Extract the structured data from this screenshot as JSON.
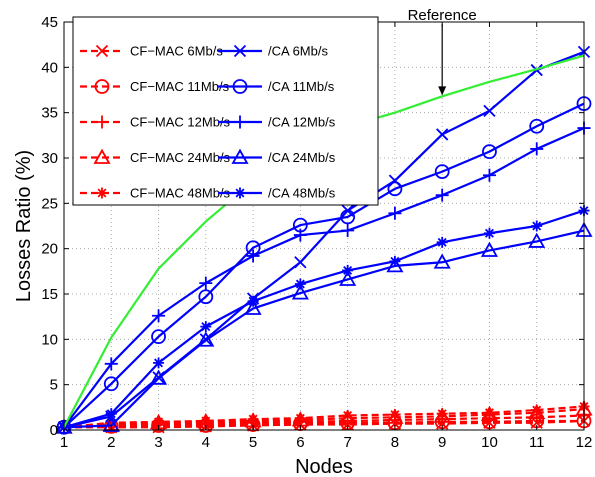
{
  "chart_data": {
    "type": "line",
    "title": "",
    "xlabel": "Nodes",
    "ylabel": "Losses Ratio (%)",
    "xlim": [
      1,
      12
    ],
    "ylim": [
      0,
      45
    ],
    "x_ticks": [
      1,
      2,
      3,
      4,
      5,
      6,
      7,
      8,
      9,
      10,
      11,
      12
    ],
    "y_ticks": [
      0,
      5,
      10,
      15,
      20,
      25,
      30,
      35,
      40,
      45
    ],
    "grid": true,
    "legend_placement": "top-left",
    "x": [
      1,
      2,
      3,
      4,
      5,
      6,
      7,
      8,
      9,
      10,
      11,
      12
    ],
    "series": [
      {
        "name": "CF−MAC 6Mb/s",
        "color": "#ff0000",
        "dash": true,
        "marker": "x",
        "values": [
          0.3,
          0.3,
          0.3,
          0.4,
          0.5,
          0.6,
          0.6,
          0.7,
          0.7,
          0.8,
          0.8,
          1.0
        ]
      },
      {
        "name": "CF−MAC 11Mb/s",
        "color": "#ff0000",
        "dash": true,
        "marker": "circle",
        "values": [
          0.3,
          0.4,
          0.5,
          0.5,
          0.6,
          0.7,
          0.8,
          0.8,
          0.9,
          0.9,
          1.0,
          1.0
        ]
      },
      {
        "name": "CF−MAC 12Mb/s",
        "color": "#ff0000",
        "dash": true,
        "marker": "plus",
        "values": [
          0.3,
          0.5,
          0.6,
          0.7,
          0.8,
          0.9,
          1.0,
          1.1,
          1.2,
          1.3,
          1.4,
          1.6
        ]
      },
      {
        "name": "CF−MAC 24Mb/s",
        "color": "#ff0000",
        "dash": true,
        "marker": "triangle",
        "values": [
          0.3,
          0.6,
          0.8,
          0.9,
          1.0,
          1.1,
          1.3,
          1.4,
          1.5,
          1.7,
          1.9,
          2.3
        ]
      },
      {
        "name": "CF−MAC 48Mb/s",
        "color": "#ff0000",
        "dash": true,
        "marker": "star",
        "values": [
          0.3,
          0.8,
          0.9,
          1.0,
          1.2,
          1.3,
          1.6,
          1.7,
          1.8,
          1.9,
          2.2,
          2.6
        ]
      },
      {
        "name": "/CA 6Mb/s",
        "color": "#0000ff",
        "dash": false,
        "marker": "x",
        "values": [
          0.3,
          1.5,
          5.8,
          10.0,
          14.5,
          18.5,
          24.2,
          27.5,
          32.6,
          35.2,
          39.7,
          41.7
        ]
      },
      {
        "name": "/CA 11Mb/s",
        "color": "#0000ff",
        "dash": false,
        "marker": "circle",
        "values": [
          0.3,
          5.1,
          10.3,
          14.7,
          20.1,
          22.6,
          23.5,
          26.6,
          28.5,
          30.7,
          33.5,
          36.0
        ]
      },
      {
        "name": "/CA 12Mb/s",
        "color": "#0000ff",
        "dash": false,
        "marker": "plus",
        "values": [
          0.3,
          7.3,
          12.6,
          16.2,
          19.2,
          21.5,
          22.0,
          23.9,
          25.9,
          28.1,
          31.0,
          33.3
        ]
      },
      {
        "name": "/CA 24Mb/s",
        "color": "#0000ff",
        "dash": false,
        "marker": "triangle",
        "values": [
          0.3,
          0.5,
          5.7,
          9.9,
          13.4,
          15.1,
          16.6,
          18.1,
          18.5,
          19.8,
          20.8,
          22.0
        ]
      },
      {
        "name": "/CA 48Mb/s",
        "color": "#0000ff",
        "dash": false,
        "marker": "star",
        "values": [
          0.3,
          1.8,
          7.4,
          11.4,
          14.2,
          16.1,
          17.6,
          18.6,
          20.7,
          21.7,
          22.5,
          24.2
        ]
      },
      {
        "color": "#33ee33",
        "dash": false,
        "marker": "none",
        "in_legend": false,
        "values": [
          0.3,
          10.2,
          17.8,
          23.0,
          27.4,
          30.7,
          33.5,
          35.0,
          36.8,
          38.4,
          39.8,
          41.3
        ]
      }
    ],
    "annotations": [
      {
        "text": "Reference",
        "points_to": {
          "x": 9,
          "y": 36.8
        }
      }
    ]
  }
}
